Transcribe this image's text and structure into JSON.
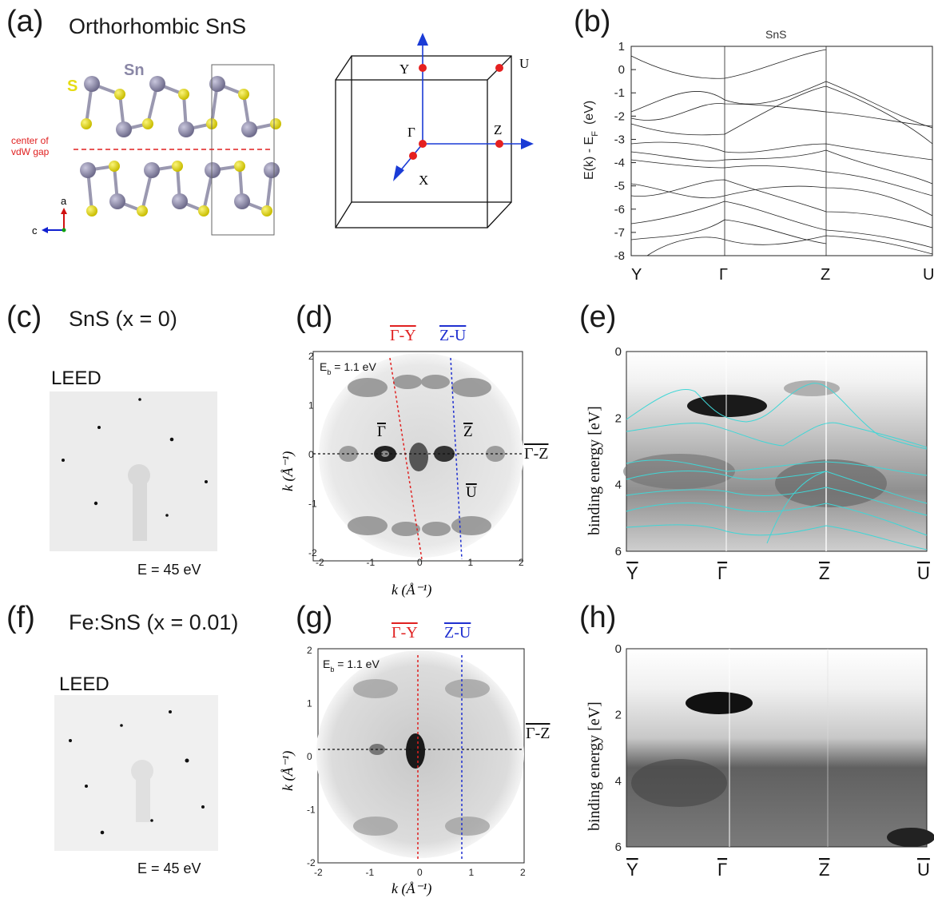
{
  "panels": {
    "a": {
      "label": "(a)",
      "title": "Orthorhombic SnS",
      "atom_sn": "Sn",
      "atom_s": "S",
      "vdw_line1": "center of",
      "vdw_line2": "vdW gap",
      "axis_a": "a",
      "axis_c": "c",
      "bz_Y": "Y",
      "bz_U": "U",
      "bz_Gamma": "Γ",
      "bz_Z": "Z",
      "bz_X": "X"
    },
    "b": {
      "label": "(b)",
      "plot_title": "SnS",
      "ylabel": "E(k) - E",
      "ylabel_sub": "F",
      "ylabel_unit": "(eV)",
      "y_ticks": [
        "1",
        "0",
        "-1",
        "-2",
        "-3",
        "-4",
        "-5",
        "-6",
        "-7",
        "-8"
      ],
      "k_points": [
        "Y",
        "Γ",
        "Z",
        "U"
      ]
    },
    "c": {
      "label": "(c)",
      "title": "SnS (x = 0)",
      "leed": "LEED",
      "energy": "E = 45 eV"
    },
    "d": {
      "label": "(d)",
      "cut_red": "Γ-Y",
      "cut_blue": "Z-U",
      "cut_horizontal": "Γ-Z",
      "eb": "E",
      "eb_sub": "b",
      "eb_value": " = 1.1 eV",
      "pt_gamma": "Γ",
      "pt_z": "Z",
      "pt_u": "U",
      "xlabel": "k (Å⁻¹)",
      "ylabel": "k (Å⁻¹)",
      "ticks": [
        "-2",
        "-1",
        "0",
        "1",
        "2"
      ],
      "yticks": [
        "2",
        "1",
        "0",
        "-1",
        "-2"
      ]
    },
    "e": {
      "label": "(e)",
      "ylabel": "binding energy [eV]",
      "y_ticks": [
        "0",
        "2",
        "4",
        "6"
      ],
      "k_points": [
        "Y",
        "Γ",
        "Z",
        "U"
      ]
    },
    "f": {
      "label": "(f)",
      "title": "Fe:SnS (x = 0.01)",
      "leed": "LEED",
      "energy": "E = 45 eV"
    },
    "g": {
      "label": "(g)",
      "cut_red": "Γ-Y",
      "cut_blue": "Z-U",
      "cut_horizontal": "Γ-Z",
      "eb": "E",
      "eb_sub": "b",
      "eb_value": " = 1.1 eV",
      "xlabel": "k (Å⁻¹)",
      "ylabel": "k (Å⁻¹)",
      "ticks": [
        "-2",
        "-1",
        "0",
        "1",
        "2"
      ],
      "yticks": [
        "2",
        "1",
        "0",
        "-1",
        "-2"
      ]
    },
    "h": {
      "label": "(h)",
      "ylabel": "binding energy [eV]",
      "y_ticks": [
        "0",
        "2",
        "4",
        "6"
      ],
      "k_points": [
        "Y",
        "Γ",
        "Z",
        "U"
      ]
    }
  },
  "colors": {
    "sn_atom": "#8a87a6",
    "s_atom": "#e6dc14",
    "vdw": "#e02020",
    "bz_axis": "#1a3bd6",
    "bz_point": "#e52020",
    "fit_bands": "#40d6d6",
    "cut_red": "#e02020",
    "cut_blue": "#2030d0"
  }
}
